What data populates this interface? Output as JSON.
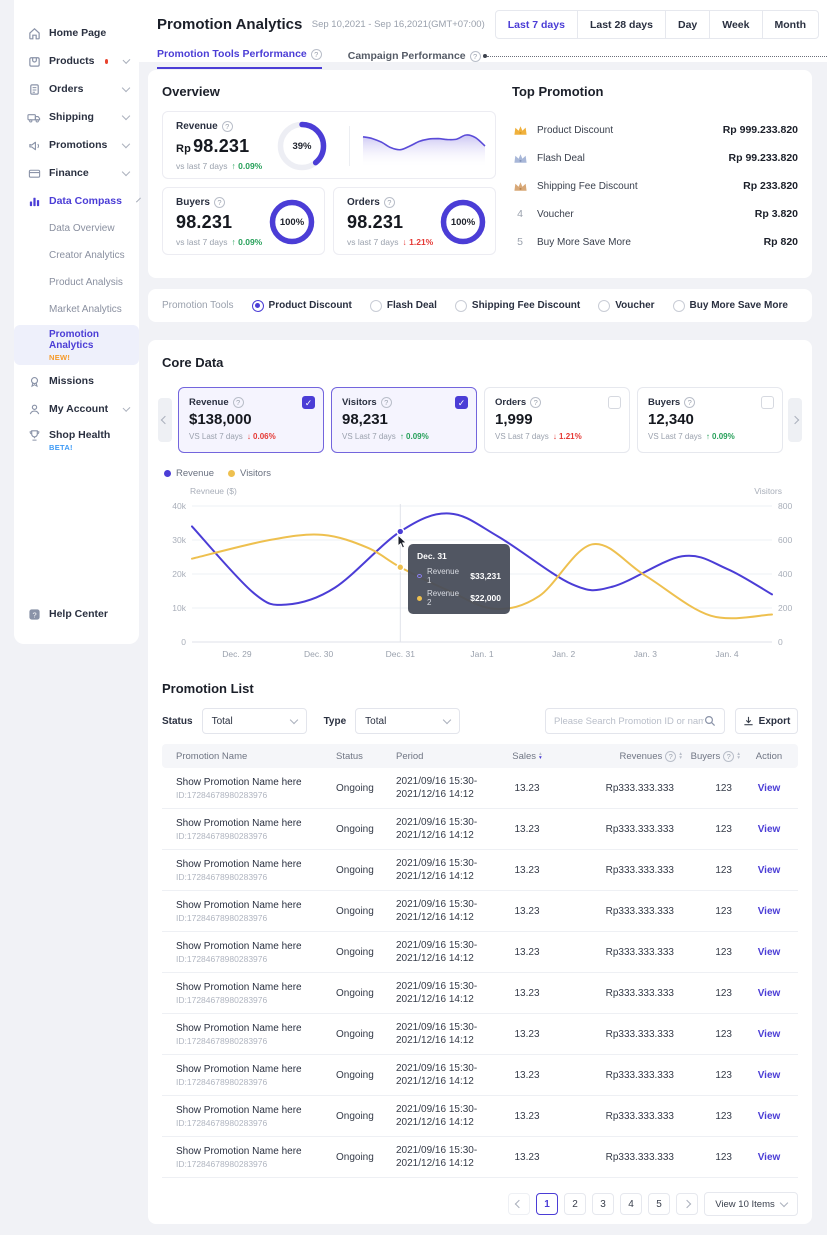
{
  "colors": {
    "accent": "#4b3dd6",
    "green": "#27a05a",
    "red": "#e53935",
    "yellow": "#eec04f",
    "orange": "#f59a2a",
    "blue": "#3f9bf5"
  },
  "header": {
    "title": "Promotion Analytics",
    "date_range": "Sep 10,2021 - Sep 16,2021(GMT+07:00)",
    "range_buttons": [
      "Last 7 days",
      "Last 28 days",
      "Day",
      "Week",
      "Month"
    ],
    "active_range": "Last 7 days",
    "tab_tools": "Promotion Tools Performance",
    "tab_campaign": "Campaign Performance"
  },
  "sidebar": {
    "home": "Home Page",
    "products": "Products",
    "orders": "Orders",
    "shipping": "Shipping",
    "promotions": "Promotions",
    "finance": "Finance",
    "data_compass": "Data Compass",
    "sub_data_overview": "Data Overview",
    "sub_creator_analytics": "Creator Analytics",
    "sub_product_analysis": "Product Analysis",
    "sub_market_analytics": "Market Analytics",
    "sub_promotion_analytics": "Promotion Analytics",
    "new_badge": "NEW!",
    "missions": "Missions",
    "my_account": "My Account",
    "shop_health": "Shop Health",
    "beta_badge": "BETA!",
    "help_center": "Help Center"
  },
  "overview": {
    "heading": "Overview",
    "revenue": {
      "label": "Revenue",
      "prefix": "Rp",
      "value": "98.231",
      "compare": "vs last 7 days",
      "delta_arrow": "↑",
      "delta": "0.09%",
      "donut_pct": "39",
      "donut_label": "39%"
    },
    "buyers": {
      "label": "Buyers",
      "value": "98.231",
      "compare": "vs last 7 days",
      "delta_arrow": "↑",
      "delta": "0.09%",
      "donut_pct": "100",
      "donut_label": "100%"
    },
    "orders": {
      "label": "Orders",
      "value": "98.231",
      "compare": "vs last 7 days",
      "delta_arrow": "↓",
      "delta": "1.21%",
      "donut_pct": "100",
      "donut_label": "100%"
    },
    "mini_trend": [
      30,
      34,
      42,
      54,
      58,
      50,
      40,
      35,
      34,
      36,
      35,
      26,
      32,
      50
    ]
  },
  "top_promotion": {
    "heading": "Top Promotion",
    "items": [
      {
        "rank": "1",
        "name": "Product Discount",
        "value": "Rp 999.233.820"
      },
      {
        "rank": "2",
        "name": "Flash Deal",
        "value": "Rp 99.233.820"
      },
      {
        "rank": "3",
        "name": "Shipping Fee Discount",
        "value": "Rp 233.820"
      },
      {
        "rank": "4",
        "name": "Voucher",
        "value": "Rp 3.820"
      },
      {
        "rank": "5",
        "name": "Buy More Save More",
        "value": "Rp 820"
      }
    ]
  },
  "promotion_tools": {
    "label": "Promotion Tools",
    "options": [
      "Product Discount",
      "Flash Deal",
      "Shipping Fee Discount",
      "Voucher",
      "Buy More Save More"
    ],
    "selected": "Product Discount"
  },
  "core_data": {
    "heading": "Core Data",
    "cards": [
      {
        "label": "Revenue",
        "value": "$138,000",
        "compare": "VS Last 7 days",
        "delta_arrow": "↓",
        "delta": "0.06%",
        "dir": "down",
        "checked": true
      },
      {
        "label": "Visitors",
        "value": "98,231",
        "compare": "VS Last 7 days",
        "delta_arrow": "↑",
        "delta": "0.09%",
        "dir": "up",
        "checked": true
      },
      {
        "label": "Orders",
        "value": "1,999",
        "compare": "VS Last 7 days",
        "delta_arrow": "↓",
        "delta": "1.21%",
        "dir": "down",
        "checked": false
      },
      {
        "label": "Buyers",
        "value": "12,340",
        "compare": "VS Last 7 days",
        "delta_arrow": "↑",
        "delta": "0.09%",
        "dir": "up",
        "checked": false
      }
    ]
  },
  "chart_data": {
    "type": "line",
    "legend": [
      "Revenue",
      "Visitors"
    ],
    "x_labels": [
      "Dec. 29",
      "Dec. 30",
      "Dec. 31",
      "Jan. 1",
      "Jan. 2",
      "Jan. 3",
      "Jan. 4"
    ],
    "left_axis": {
      "label": "Revneue ($)",
      "ticks": [
        "40k",
        "30k",
        "20k",
        "10k",
        "0"
      ],
      "range": [
        0,
        40000
      ]
    },
    "right_axis": {
      "label": "Visitors",
      "ticks": [
        "800",
        "600",
        "400",
        "200",
        "0"
      ],
      "range": [
        0,
        800
      ]
    },
    "grid": true,
    "hover_u": 2,
    "series": [
      {
        "name": "Revenue",
        "axis": "left",
        "color": "#4b3dd6",
        "points": [
          [
            -0.55,
            34000
          ],
          [
            0.2,
            14500
          ],
          [
            0.6,
            11000
          ],
          [
            1.2,
            16000
          ],
          [
            2,
            32500
          ],
          [
            2.6,
            37800
          ],
          [
            3.2,
            31000
          ],
          [
            4.1,
            17000
          ],
          [
            4.6,
            16300
          ],
          [
            5.45,
            25200
          ],
          [
            6,
            21500
          ],
          [
            6.55,
            14000
          ]
        ]
      },
      {
        "name": "Visitors",
        "axis": "right",
        "color": "#eec04f",
        "points": [
          [
            -0.55,
            490
          ],
          [
            0.4,
            600
          ],
          [
            1.05,
            630
          ],
          [
            1.6,
            555
          ],
          [
            2,
            440
          ],
          [
            2.6,
            300
          ],
          [
            3.15,
            195
          ],
          [
            3.7,
            270
          ],
          [
            4.35,
            575
          ],
          [
            5,
            390
          ],
          [
            5.8,
            155
          ],
          [
            6.55,
            162
          ]
        ]
      }
    ],
    "tooltip": {
      "title": "Dec. 31",
      "rows": [
        {
          "name": "Revenue 1",
          "value": "$33,231"
        },
        {
          "name": "Revenue 2",
          "value": "$22,000"
        }
      ]
    }
  },
  "promotion_list": {
    "heading": "Promotion List",
    "filters": {
      "status_label": "Status",
      "status_value": "Total",
      "type_label": "Type",
      "type_value": "Total",
      "search_placeholder": "Please Search Promotion ID or name",
      "export_label": "Export"
    },
    "table": {
      "headers": {
        "name": "Promotion Name",
        "status": "Status",
        "period": "Period",
        "sales": "Sales",
        "revenues": "Revenues",
        "buyers": "Buyers",
        "action": "Action"
      },
      "rows": [
        {
          "name": "Show Promotion Name here",
          "id": "ID:17284678980283976",
          "status": "Ongoing",
          "period_1": "2021/09/16 15:30-",
          "period_2": "2021/12/16 14:12",
          "sales": "13.23",
          "revenues": "Rp333.333.333",
          "buyers": "123",
          "action": "View"
        },
        {
          "name": "Show Promotion Name here",
          "id": "ID:17284678980283976",
          "status": "Ongoing",
          "period_1": "2021/09/16 15:30-",
          "period_2": "2021/12/16 14:12",
          "sales": "13.23",
          "revenues": "Rp333.333.333",
          "buyers": "123",
          "action": "View"
        },
        {
          "name": "Show Promotion Name here",
          "id": "ID:17284678980283976",
          "status": "Ongoing",
          "period_1": "2021/09/16 15:30-",
          "period_2": "2021/12/16 14:12",
          "sales": "13.23",
          "revenues": "Rp333.333.333",
          "buyers": "123",
          "action": "View"
        },
        {
          "name": "Show Promotion Name here",
          "id": "ID:17284678980283976",
          "status": "Ongoing",
          "period_1": "2021/09/16 15:30-",
          "period_2": "2021/12/16 14:12",
          "sales": "13.23",
          "revenues": "Rp333.333.333",
          "buyers": "123",
          "action": "View"
        },
        {
          "name": "Show Promotion Name here",
          "id": "ID:17284678980283976",
          "status": "Ongoing",
          "period_1": "2021/09/16 15:30-",
          "period_2": "2021/12/16 14:12",
          "sales": "13.23",
          "revenues": "Rp333.333.333",
          "buyers": "123",
          "action": "View"
        },
        {
          "name": "Show Promotion Name here",
          "id": "ID:17284678980283976",
          "status": "Ongoing",
          "period_1": "2021/09/16 15:30-",
          "period_2": "2021/12/16 14:12",
          "sales": "13.23",
          "revenues": "Rp333.333.333",
          "buyers": "123",
          "action": "View"
        },
        {
          "name": "Show Promotion Name here",
          "id": "ID:17284678980283976",
          "status": "Ongoing",
          "period_1": "2021/09/16 15:30-",
          "period_2": "2021/12/16 14:12",
          "sales": "13.23",
          "revenues": "Rp333.333.333",
          "buyers": "123",
          "action": "View"
        },
        {
          "name": "Show Promotion Name here",
          "id": "ID:17284678980283976",
          "status": "Ongoing",
          "period_1": "2021/09/16 15:30-",
          "period_2": "2021/12/16 14:12",
          "sales": "13.23",
          "revenues": "Rp333.333.333",
          "buyers": "123",
          "action": "View"
        },
        {
          "name": "Show Promotion Name here",
          "id": "ID:17284678980283976",
          "status": "Ongoing",
          "period_1": "2021/09/16 15:30-",
          "period_2": "2021/12/16 14:12",
          "sales": "13.23",
          "revenues": "Rp333.333.333",
          "buyers": "123",
          "action": "View"
        },
        {
          "name": "Show Promotion Name here",
          "id": "ID:17284678980283976",
          "status": "Ongoing",
          "period_1": "2021/09/16 15:30-",
          "period_2": "2021/12/16 14:12",
          "sales": "13.23",
          "revenues": "Rp333.333.333",
          "buyers": "123",
          "action": "View"
        }
      ]
    },
    "pagination": {
      "pages": [
        "1",
        "2",
        "3",
        "4",
        "5"
      ],
      "active": "1",
      "view_label": "View 10 Items"
    }
  }
}
